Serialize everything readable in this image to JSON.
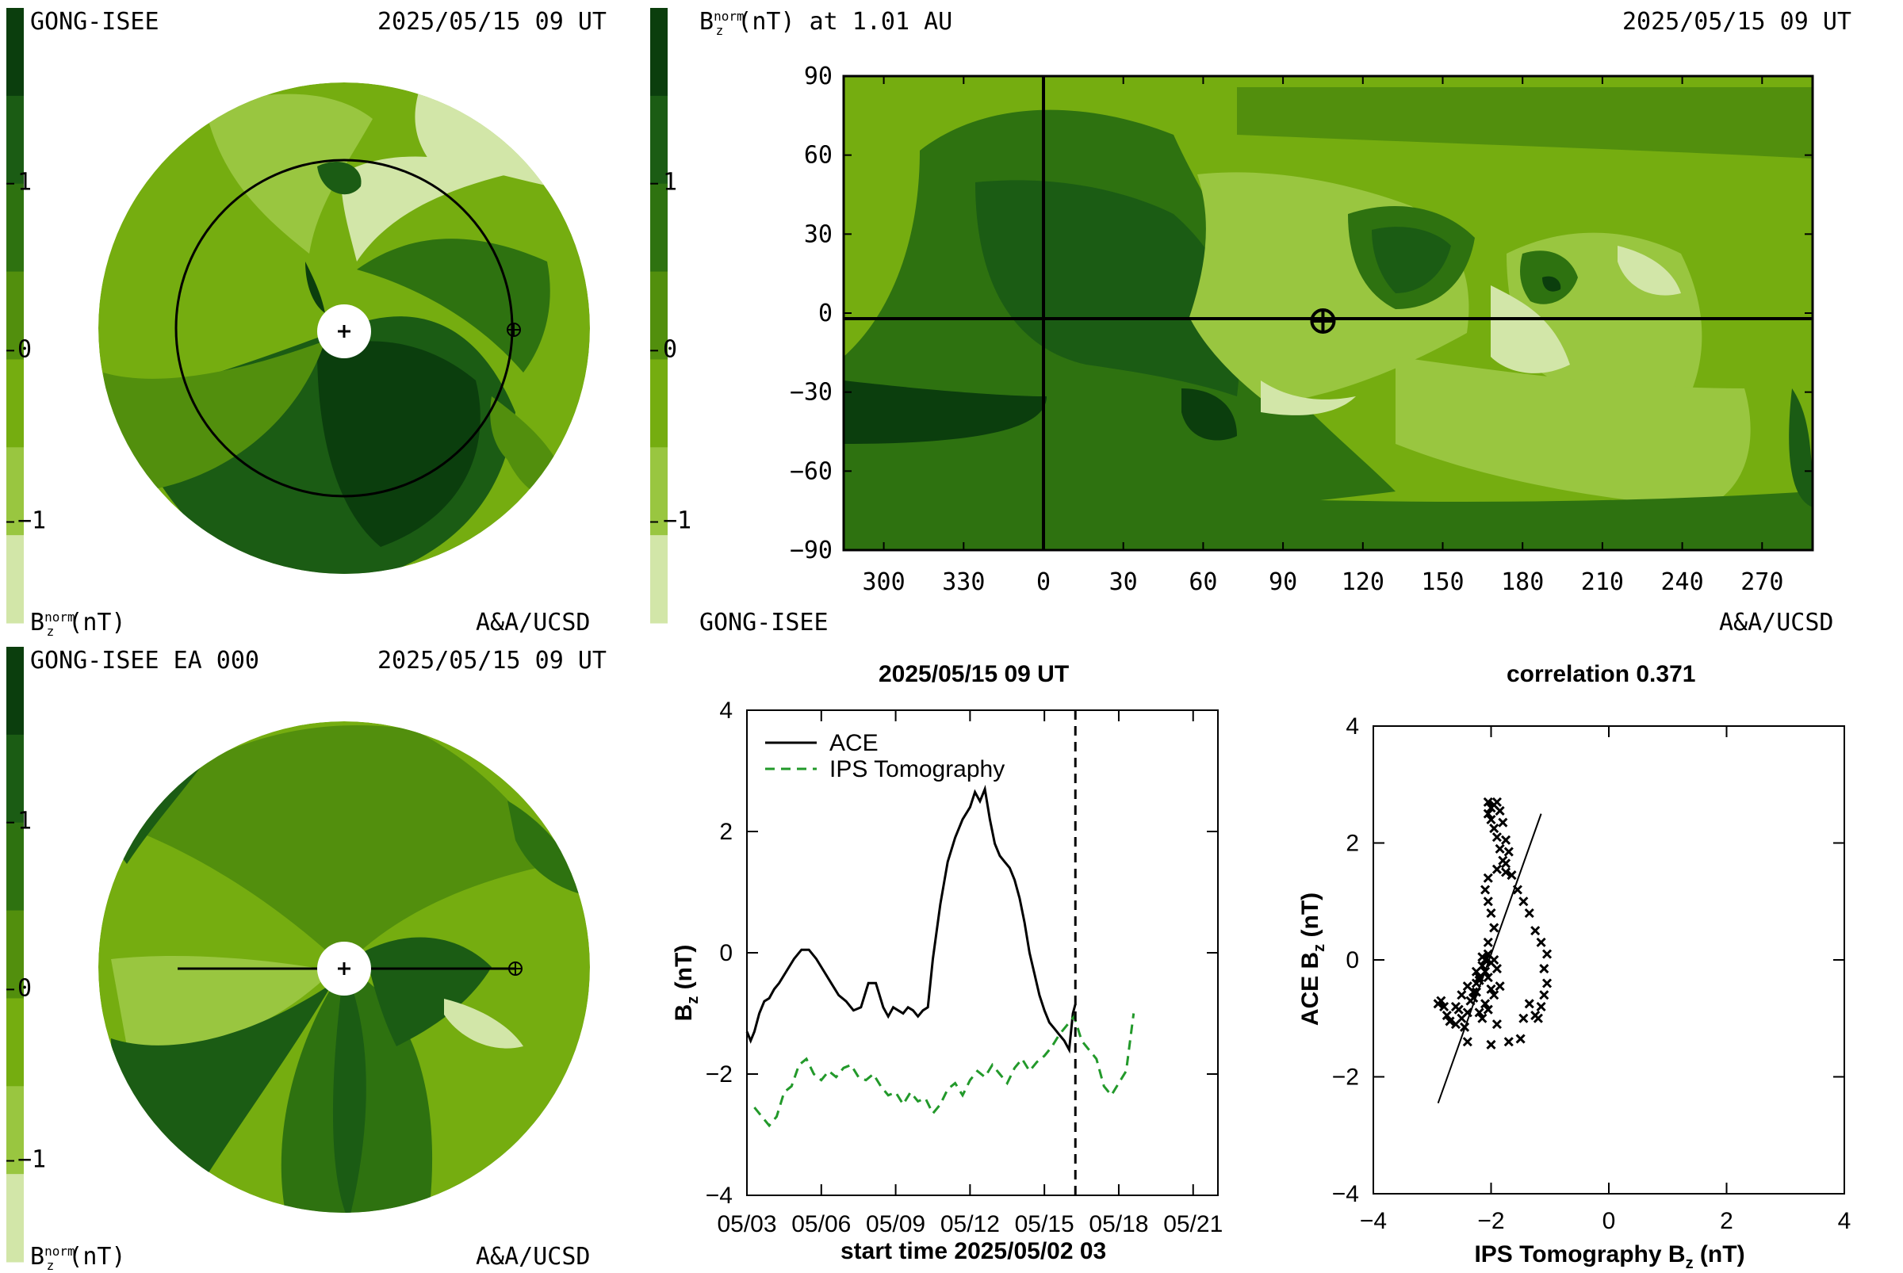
{
  "colors": {
    "levels": [
      "#d2e6a8",
      "#99c640",
      "#75ad10",
      "#528f0d",
      "#2e7210",
      "#1b5c14",
      "#0b3e0d"
    ],
    "black": "#000000",
    "ips": "#22992a"
  },
  "panels": {
    "top_left": {
      "source": "GONG-ISEE",
      "time": "2025/05/15 09 UT",
      "unit_label": "B",
      "unit_sub": "z",
      "unit_sup": "norm",
      "unit_suffix": "(nT)",
      "credit": "A&A/UCSD"
    },
    "top_right": {
      "title_prefix": "B",
      "title_sub": "z",
      "title_sup": "norm",
      "title_suffix": "(nT) at 1.01 AU",
      "time": "2025/05/15 09 UT",
      "source": "GONG-ISEE",
      "credit": "A&A/UCSD"
    },
    "bottom_left": {
      "source": "GONG-ISEE EA 000",
      "time": "2025/05/15 09 UT",
      "unit_label": "B",
      "unit_sub": "z",
      "unit_sup": "norm",
      "unit_suffix": "(nT)",
      "credit": "A&A/UCSD"
    }
  },
  "colorbar": {
    "tick_labels": [
      "1",
      "0",
      "−1"
    ]
  },
  "chart_data": [
    {
      "type": "heatmap",
      "title": "B_z^norm (nT) at 1.01 AU",
      "x_tick_labels": [
        "300",
        "330",
        "0",
        "30",
        "60",
        "90",
        "120",
        "150",
        "180",
        "210",
        "240",
        "270"
      ],
      "y_tick_labels": [
        "90",
        "60",
        "30",
        "0",
        "−30",
        "−60",
        "−90"
      ],
      "ylim": [
        -90,
        90
      ],
      "earth_marker": {
        "x": 105,
        "y": -3
      }
    },
    {
      "type": "line",
      "title": "2025/05/15 09 UT",
      "xlabel": "start time 2025/05/02 03",
      "ylabel": "B",
      "ylabel_sub": "z",
      "ylabel_suffix": "(nT)",
      "x_tick_labels": [
        "05/03",
        "05/06",
        "05/09",
        "05/12",
        "05/15",
        "05/18",
        "05/21"
      ],
      "y_tick_labels": [
        "4",
        "2",
        "0",
        "−2",
        "−4"
      ],
      "xlim": [
        0,
        19
      ],
      "ylim": [
        -4,
        4
      ],
      "current_time_day": 13.25,
      "series": [
        {
          "name": "ACE",
          "style": "solid",
          "x": [
            0.0,
            0.15,
            0.3,
            0.5,
            0.7,
            0.9,
            1.1,
            1.3,
            1.6,
            1.9,
            2.2,
            2.5,
            2.8,
            3.1,
            3.4,
            3.7,
            4.0,
            4.3,
            4.6,
            4.9,
            5.2,
            5.5,
            5.7,
            5.9,
            6.1,
            6.3,
            6.5,
            6.7,
            6.9,
            7.1,
            7.3,
            7.5,
            7.8,
            8.1,
            8.4,
            8.7,
            9.0,
            9.2,
            9.4,
            9.6,
            9.8,
            10.0,
            10.2,
            10.4,
            10.6,
            10.8,
            11.0,
            11.2,
            11.4,
            11.6,
            11.8,
            12.0,
            12.2,
            12.4,
            12.6,
            12.8,
            13.0,
            13.15,
            13.25
          ],
          "y": [
            -1.3,
            -1.45,
            -1.3,
            -1.0,
            -0.8,
            -0.75,
            -0.6,
            -0.5,
            -0.3,
            -0.1,
            0.05,
            0.05,
            -0.1,
            -0.3,
            -0.5,
            -0.7,
            -0.8,
            -0.95,
            -0.9,
            -0.5,
            -0.5,
            -0.9,
            -1.05,
            -0.9,
            -0.95,
            -1.0,
            -0.9,
            -0.95,
            -1.05,
            -0.95,
            -0.9,
            -0.1,
            0.8,
            1.5,
            1.9,
            2.2,
            2.4,
            2.65,
            2.5,
            2.7,
            2.2,
            1.8,
            1.6,
            1.5,
            1.4,
            1.2,
            0.9,
            0.5,
            0.0,
            -0.35,
            -0.7,
            -0.95,
            -1.15,
            -1.25,
            -1.35,
            -1.45,
            -1.6,
            -1.0,
            -0.85
          ]
        },
        {
          "name": "IPS Tomography",
          "style": "dashed",
          "x": [
            0.3,
            0.6,
            0.9,
            1.2,
            1.5,
            1.8,
            2.1,
            2.4,
            2.7,
            3.0,
            3.3,
            3.6,
            3.9,
            4.2,
            4.5,
            4.8,
            5.1,
            5.4,
            5.7,
            6.0,
            6.3,
            6.6,
            6.9,
            7.2,
            7.5,
            7.8,
            8.1,
            8.4,
            8.7,
            9.0,
            9.3,
            9.6,
            9.9,
            10.2,
            10.5,
            10.8,
            11.1,
            11.4,
            11.7,
            12.0,
            12.3,
            12.6,
            12.9,
            13.2,
            13.5,
            13.8,
            14.1,
            14.4,
            14.7,
            15.0,
            15.3,
            15.6
          ],
          "y": [
            -2.55,
            -2.7,
            -2.85,
            -2.7,
            -2.3,
            -2.2,
            -1.85,
            -1.75,
            -2.0,
            -2.1,
            -1.95,
            -2.05,
            -1.9,
            -1.85,
            -2.05,
            -2.1,
            -2.0,
            -2.2,
            -2.35,
            -2.3,
            -2.5,
            -2.3,
            -2.45,
            -2.4,
            -2.65,
            -2.5,
            -2.25,
            -2.15,
            -2.35,
            -2.1,
            -1.95,
            -2.05,
            -1.85,
            -2.0,
            -2.15,
            -1.9,
            -1.75,
            -1.95,
            -1.8,
            -1.7,
            -1.55,
            -1.35,
            -1.2,
            -1.05,
            -1.45,
            -1.6,
            -1.75,
            -2.2,
            -2.35,
            -2.15,
            -1.95,
            -1.0
          ]
        }
      ],
      "legend": "top-left"
    },
    {
      "type": "scatter",
      "title": "correlation 0.371",
      "xlabel": "IPS Tomography B",
      "xlabel_sub": "z",
      "xlabel_suffix": "(nT)",
      "ylabel": "ACE B",
      "ylabel_sub": "z",
      "ylabel_suffix": "(nT)",
      "x_tick_labels": [
        "−4",
        "−2",
        "0",
        "2",
        "4"
      ],
      "y_tick_labels": [
        "4",
        "2",
        "0",
        "−2",
        "−4"
      ],
      "xlim": [
        -4,
        4
      ],
      "ylim": [
        -4,
        4
      ],
      "points": [
        [
          -2.9,
          -0.75
        ],
        [
          -2.85,
          -0.7
        ],
        [
          -2.8,
          -0.8
        ],
        [
          -2.75,
          -0.95
        ],
        [
          -2.7,
          -1.05
        ],
        [
          -2.6,
          -1.1
        ],
        [
          -2.55,
          -0.85
        ],
        [
          -2.5,
          -1.0
        ],
        [
          -2.45,
          -1.15
        ],
        [
          -2.4,
          -0.9
        ],
        [
          -2.35,
          -0.7
        ],
        [
          -2.3,
          -0.55
        ],
        [
          -2.25,
          -0.4
        ],
        [
          -2.2,
          -0.3
        ],
        [
          -2.15,
          -0.1
        ],
        [
          -2.1,
          -0.2
        ],
        [
          -2.05,
          -0.3
        ],
        [
          -2.0,
          -0.05
        ],
        [
          -1.95,
          0.0
        ],
        [
          -1.9,
          -0.15
        ],
        [
          -2.0,
          -0.5
        ],
        [
          -2.1,
          -0.75
        ],
        [
          -2.2,
          -0.9
        ],
        [
          -2.3,
          -0.65
        ],
        [
          -2.4,
          -0.45
        ],
        [
          -2.5,
          -0.6
        ],
        [
          -2.6,
          -0.8
        ],
        [
          -2.25,
          -0.2
        ],
        [
          -2.15,
          0.05
        ],
        [
          -2.05,
          0.1
        ],
        [
          -1.95,
          -0.6
        ],
        [
          -2.05,
          -0.85
        ],
        [
          -2.15,
          -1.0
        ],
        [
          -1.9,
          -1.1
        ],
        [
          -2.4,
          -1.4
        ],
        [
          -2.0,
          -1.45
        ],
        [
          -1.7,
          -1.4
        ],
        [
          -1.5,
          -1.35
        ],
        [
          -1.45,
          -1.0
        ],
        [
          -1.35,
          -0.75
        ],
        [
          -1.25,
          -0.95
        ],
        [
          -1.2,
          -1.0
        ],
        [
          -1.15,
          -0.8
        ],
        [
          -1.1,
          -0.6
        ],
        [
          -1.05,
          -0.4
        ],
        [
          -1.1,
          -0.15
        ],
        [
          -1.05,
          0.1
        ],
        [
          -1.15,
          0.3
        ],
        [
          -1.25,
          0.5
        ],
        [
          -1.35,
          0.8
        ],
        [
          -1.45,
          1.0
        ],
        [
          -1.55,
          1.2
        ],
        [
          -1.65,
          1.45
        ],
        [
          -1.75,
          1.5
        ],
        [
          -1.8,
          1.7
        ],
        [
          -1.85,
          1.9
        ],
        [
          -1.9,
          2.1
        ],
        [
          -1.95,
          2.25
        ],
        [
          -2.0,
          2.4
        ],
        [
          -2.05,
          2.5
        ],
        [
          -2.0,
          2.6
        ],
        [
          -1.95,
          2.65
        ],
        [
          -1.9,
          2.7
        ],
        [
          -2.05,
          2.7
        ],
        [
          -1.85,
          2.55
        ],
        [
          -1.8,
          2.35
        ],
        [
          -1.75,
          2.05
        ],
        [
          -1.7,
          1.85
        ],
        [
          -1.75,
          1.65
        ],
        [
          -1.9,
          1.55
        ],
        [
          -2.05,
          1.4
        ],
        [
          -2.1,
          1.2
        ],
        [
          -2.05,
          1.0
        ],
        [
          -2.0,
          0.8
        ],
        [
          -1.95,
          0.55
        ],
        [
          -2.05,
          0.3
        ],
        [
          -2.1,
          0.0
        ],
        [
          -2.2,
          -0.35
        ],
        [
          -2.25,
          -0.55
        ],
        [
          -1.85,
          -0.45
        ]
      ],
      "fit_line": {
        "x1": -2.9,
        "y1": -2.45,
        "x2": -1.15,
        "y2": 2.5
      }
    }
  ]
}
